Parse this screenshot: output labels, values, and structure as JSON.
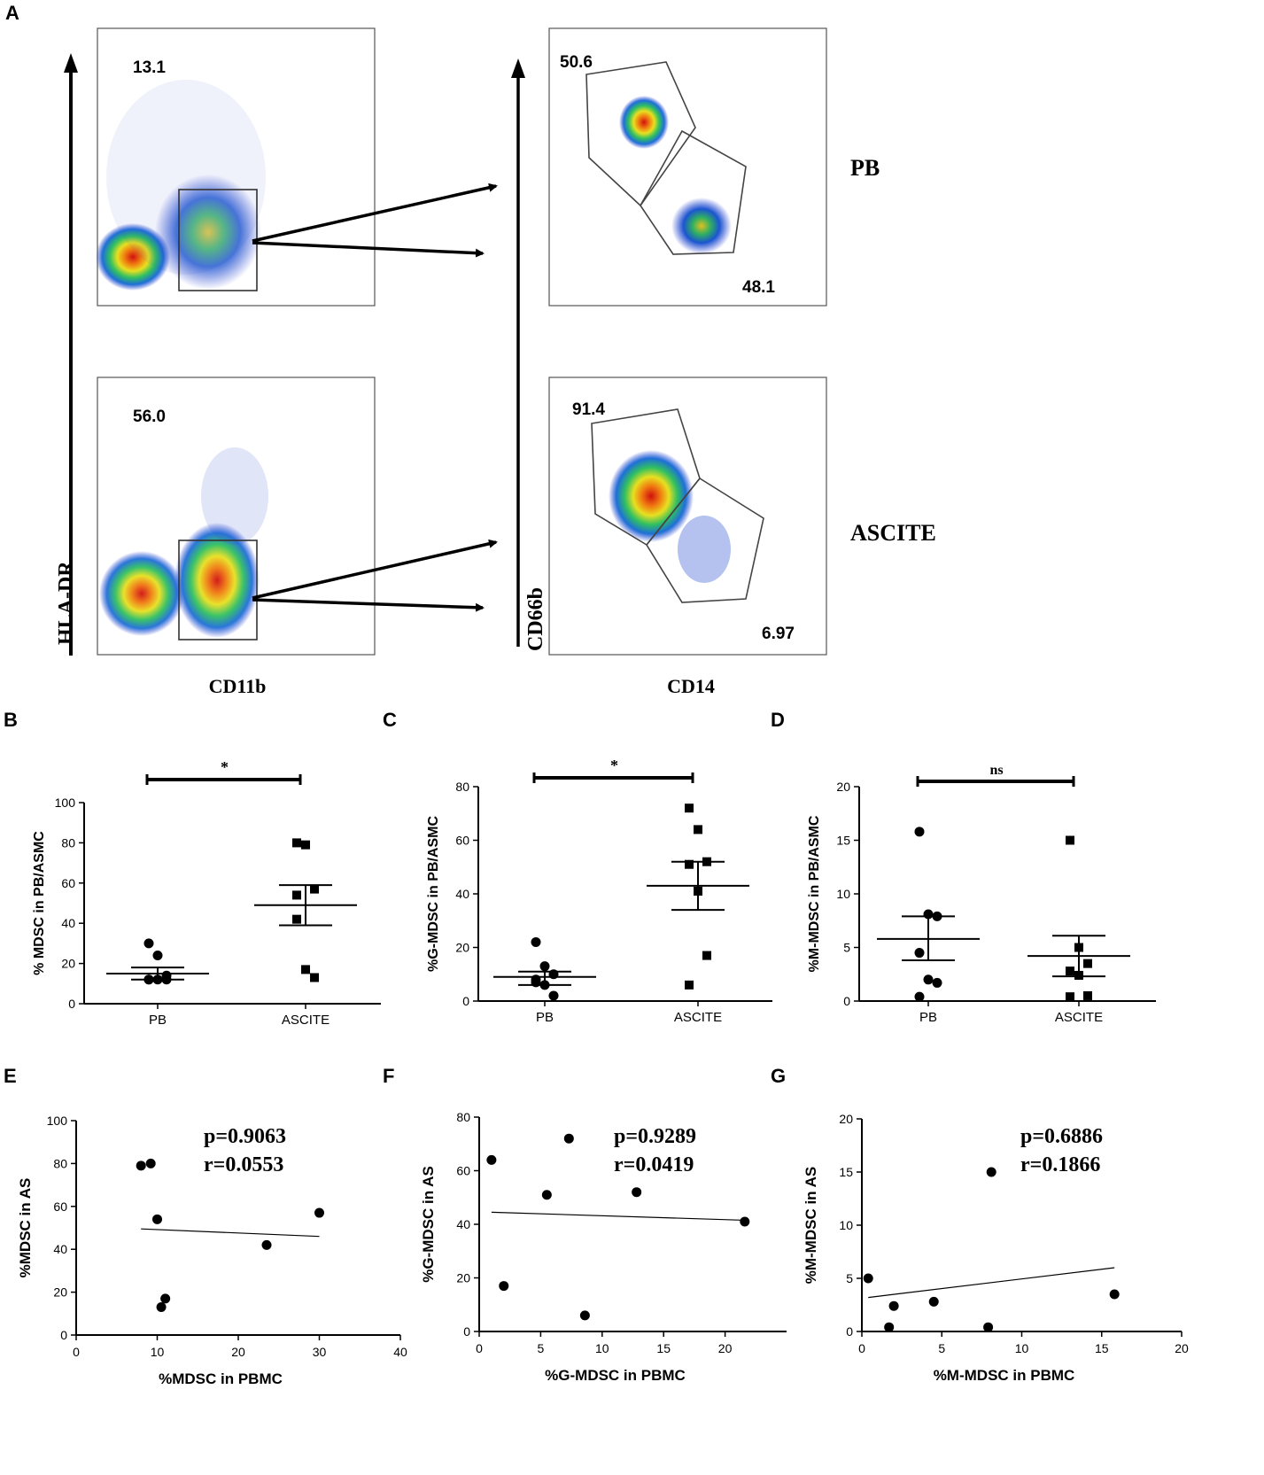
{
  "panel_letters": [
    "A",
    "B",
    "C",
    "D",
    "E",
    "F",
    "G"
  ],
  "flow": {
    "y_axis_left": "HLA-DR",
    "x_axis_left": "CD11b",
    "y_axis_right": "CD66b",
    "x_axis_right": "CD14",
    "row_labels": [
      "PB",
      "ASCITE"
    ],
    "gates": {
      "pb_left": "13.1",
      "asc_left": "56.0",
      "pb_right_top": "50.6",
      "pb_right_bottom": "48.1",
      "asc_right_top": "91.4",
      "asc_right_bottom": "6.97"
    }
  },
  "chart_data": [
    {
      "panel": "B",
      "type": "scatter",
      "ylabel": "% MDSC in PB/ASMC",
      "categories": [
        "PB",
        "ASCITE"
      ],
      "ylim": [
        0,
        100
      ],
      "yticks": [
        0,
        20,
        40,
        60,
        80,
        100
      ],
      "series": [
        {
          "name": "PB",
          "marker": "circle",
          "values": [
            30,
            24,
            14,
            12,
            12,
            12,
            12
          ],
          "mean": 15,
          "sem_low": 12,
          "sem_high": 18
        },
        {
          "name": "ASCITE",
          "marker": "square",
          "values": [
            80,
            79,
            57,
            54,
            17,
            13,
            42
          ],
          "mean": 49,
          "sem_low": 39,
          "sem_high": 59
        }
      ],
      "significance": "*"
    },
    {
      "panel": "C",
      "type": "scatter",
      "ylabel": "%G-MDSC in PB/ASMC",
      "categories": [
        "PB",
        "ASCITE"
      ],
      "ylim": [
        0,
        80
      ],
      "yticks": [
        0,
        20,
        40,
        60,
        80
      ],
      "series": [
        {
          "name": "PB",
          "marker": "circle",
          "values": [
            22,
            13,
            10,
            7,
            6,
            2,
            8
          ],
          "mean": 9,
          "sem_low": 6,
          "sem_high": 11
        },
        {
          "name": "ASCITE",
          "marker": "square",
          "values": [
            72,
            64,
            52,
            51,
            41,
            17,
            6
          ],
          "mean": 43,
          "sem_low": 34,
          "sem_high": 52
        },
        {
          "name": "",
          "marker": "none",
          "values": []
        }
      ],
      "significance": "*"
    },
    {
      "panel": "D",
      "type": "scatter",
      "ylabel": "%M-MDSC in PB/ASMC",
      "categories": [
        "PB",
        "ASCITE"
      ],
      "ylim": [
        0,
        20
      ],
      "yticks": [
        0,
        5,
        10,
        15,
        20
      ],
      "series": [
        {
          "name": "PB",
          "marker": "circle",
          "values": [
            15.8,
            8.1,
            7.9,
            4.5,
            2.0,
            1.7,
            0.4
          ],
          "mean": 5.8,
          "sem_low": 3.8,
          "sem_high": 7.9
        },
        {
          "name": "ASCITE",
          "marker": "square",
          "values": [
            15.0,
            5.0,
            3.5,
            2.8,
            2.4,
            0.5,
            0.4
          ],
          "mean": 4.2,
          "sem_low": 2.3,
          "sem_high": 6.1
        }
      ],
      "significance": "ns"
    },
    {
      "panel": "E",
      "type": "scatter",
      "xlabel": "%MDSC in PBMC",
      "ylabel": "%MDSC in AS",
      "xlim": [
        0,
        40
      ],
      "ylim": [
        0,
        100
      ],
      "xticks": [
        0,
        10,
        20,
        30,
        40
      ],
      "yticks": [
        0,
        20,
        40,
        60,
        80,
        100
      ],
      "x": [
        8,
        9.2,
        10,
        10.5,
        11,
        23.5,
        30
      ],
      "y": [
        79,
        80,
        54,
        13,
        17,
        42,
        57
      ],
      "fit": {
        "x": [
          8,
          30
        ],
        "y": [
          49.5,
          46
        ]
      },
      "p_label": "p=0.9063",
      "r_label": "r=0.0553"
    },
    {
      "panel": "F",
      "type": "scatter",
      "xlabel": "%G-MDSC in PBMC",
      "ylabel": "%G-MDSC in AS",
      "xlim": [
        0,
        25
      ],
      "ylim": [
        0,
        80
      ],
      "xticks": [
        0,
        5,
        10,
        15,
        20
      ],
      "yticks": [
        0,
        20,
        40,
        60,
        80
      ],
      "x": [
        1,
        2,
        5.5,
        7.3,
        8.6,
        12.8,
        21.6
      ],
      "y": [
        64,
        17,
        51,
        72,
        6,
        52,
        41
      ],
      "fit": {
        "x": [
          1,
          21.6
        ],
        "y": [
          44.5,
          41.5
        ]
      },
      "p_label": "p=0.9289",
      "r_label": "r=0.0419"
    },
    {
      "panel": "G",
      "type": "scatter",
      "xlabel": "%M-MDSC in PBMC",
      "ylabel": "%M-MDSC in AS",
      "xlim": [
        0,
        20
      ],
      "ylim": [
        0,
        20
      ],
      "xticks": [
        0,
        5,
        10,
        15,
        20
      ],
      "yticks": [
        0,
        5,
        10,
        15,
        20
      ],
      "x": [
        0.4,
        1.7,
        2.0,
        4.5,
        7.9,
        8.1,
        15.8
      ],
      "y": [
        5.0,
        0.4,
        2.4,
        2.8,
        0.4,
        15.0,
        3.5
      ],
      "fit": {
        "x": [
          0.4,
          15.8
        ],
        "y": [
          3.2,
          6.0
        ]
      },
      "p_label": "p=0.6886",
      "r_label": "r=0.1866"
    }
  ]
}
